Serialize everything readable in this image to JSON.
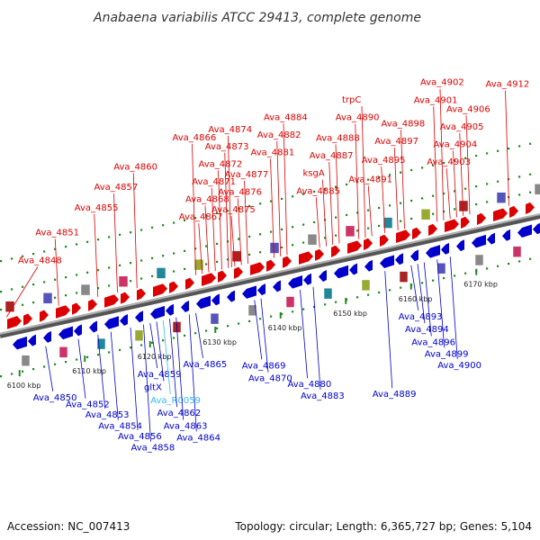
{
  "title": "Anabaena variabilis ATCC 29413, complete genome",
  "footer": {
    "accession": "Accession: NC_007413",
    "summary": "Topology: circular; Length: 6,365,727 bp; Genes: 5,104"
  },
  "colors": {
    "forward": "#dd0000",
    "reverse": "#0000cc",
    "rna": "#33bbee",
    "backbone": "#777777",
    "tick": "#228822"
  },
  "scale": {
    "unit": "kbp",
    "ticks": [
      {
        "kbp": 6100,
        "label": "6100 kbp"
      },
      {
        "kbp": 6110,
        "label": "6110 kbp"
      },
      {
        "kbp": 6120,
        "label": "6120 kbp"
      },
      {
        "kbp": 6130,
        "label": "6130 kbp"
      },
      {
        "kbp": 6140,
        "label": "6140 kbp"
      },
      {
        "kbp": 6150,
        "label": "6150 kbp"
      },
      {
        "kbp": 6160,
        "label": "6160 kbp"
      },
      {
        "kbp": 6170,
        "label": "6170 kbp"
      }
    ]
  },
  "genes": {
    "forward": [
      {
        "id": "Ava_4848",
        "pos": 6098
      },
      {
        "id": "Ava_4851",
        "pos": 6106
      },
      {
        "id": "Ava_4855",
        "pos": 6112
      },
      {
        "id": "Ava_4857",
        "pos": 6115
      },
      {
        "id": "Ava_4860",
        "pos": 6118
      },
      {
        "id": "Ava_4866",
        "pos": 6127
      },
      {
        "id": "Ava_4867",
        "pos": 6128
      },
      {
        "id": "Ava_4868",
        "pos": 6129
      },
      {
        "id": "Ava_4871",
        "pos": 6130
      },
      {
        "id": "Ava_4872",
        "pos": 6131
      },
      {
        "id": "Ava_4873",
        "pos": 6132
      },
      {
        "id": "Ava_4874",
        "pos": 6132.5
      },
      {
        "id": "Ava_4875",
        "pos": 6133
      },
      {
        "id": "Ava_4876",
        "pos": 6134
      },
      {
        "id": "Ava_4877",
        "pos": 6135
      },
      {
        "id": "Ava_4881",
        "pos": 6139
      },
      {
        "id": "Ava_4882",
        "pos": 6140
      },
      {
        "id": "Ava_4884",
        "pos": 6141
      },
      {
        "id": "Ava_4885",
        "pos": 6146
      },
      {
        "id": "ksgA",
        "pos": 6147
      },
      {
        "id": "Ava_4887",
        "pos": 6148
      },
      {
        "id": "Ava_4888",
        "pos": 6149
      },
      {
        "id": "Ava_4890",
        "pos": 6152
      },
      {
        "id": "trpC",
        "pos": 6153
      },
      {
        "id": "Ava_4891",
        "pos": 6154
      },
      {
        "id": "Ava_4895",
        "pos": 6156
      },
      {
        "id": "Ava_4897",
        "pos": 6158
      },
      {
        "id": "Ava_4898",
        "pos": 6159
      },
      {
        "id": "Ava_4901",
        "pos": 6164
      },
      {
        "id": "Ava_4902",
        "pos": 6165
      },
      {
        "id": "Ava_4903",
        "pos": 6166
      },
      {
        "id": "Ava_4904",
        "pos": 6167
      },
      {
        "id": "Ava_4905",
        "pos": 6168
      },
      {
        "id": "Ava_4906",
        "pos": 6169
      },
      {
        "id": "Ava_4912",
        "pos": 6175
      }
    ],
    "reverse": [
      {
        "id": "Ava_4850",
        "pos": 6104
      },
      {
        "id": "Ava_4852",
        "pos": 6109
      },
      {
        "id": "Ava_4853",
        "pos": 6112
      },
      {
        "id": "Ava_4854",
        "pos": 6114
      },
      {
        "id": "Ava_4856",
        "pos": 6117
      },
      {
        "id": "Ava_4858",
        "pos": 6119
      },
      {
        "id": "Ava_4859",
        "pos": 6120
      },
      {
        "id": "gltX",
        "pos": 6121
      },
      {
        "id": "Ava_R0059",
        "pos": 6122,
        "rna": true
      },
      {
        "id": "Ava_4862",
        "pos": 6123
      },
      {
        "id": "Ava_4863",
        "pos": 6124
      },
      {
        "id": "Ava_4864",
        "pos": 6126
      },
      {
        "id": "Ava_4865",
        "pos": 6127
      },
      {
        "id": "Ava_4869",
        "pos": 6136
      },
      {
        "id": "Ava_4870",
        "pos": 6137
      },
      {
        "id": "Ava_4880",
        "pos": 6143
      },
      {
        "id": "Ava_4883",
        "pos": 6145
      },
      {
        "id": "Ava_4889",
        "pos": 6156
      },
      {
        "id": "Ava_4893",
        "pos": 6160
      },
      {
        "id": "Ava_4894",
        "pos": 6161
      },
      {
        "id": "Ava_4896",
        "pos": 6162
      },
      {
        "id": "Ava_4899",
        "pos": 6164
      },
      {
        "id": "Ava_4900",
        "pos": 6166
      }
    ]
  }
}
